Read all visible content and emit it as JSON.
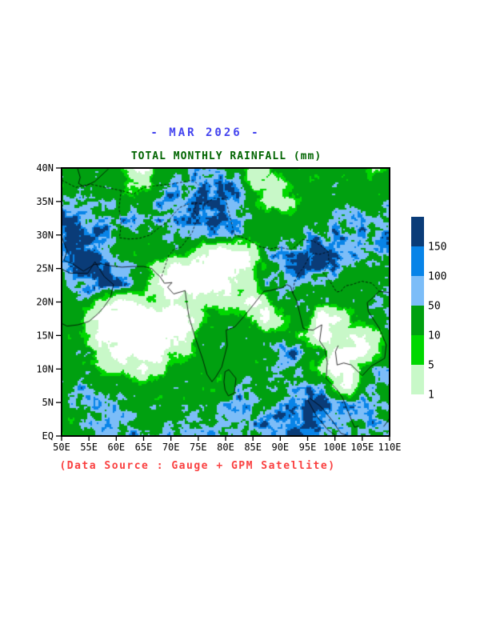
{
  "header": {
    "title": "- MAR 2026 -",
    "subtitle": "TOTAL MONTHLY RAINFALL (mm)"
  },
  "footer": {
    "source_note": "(Data Source : Gauge + GPM Satellite)"
  },
  "colors": {
    "title_text": "#4343ef",
    "subtitle_text": "#006400",
    "source_text": "#fa4040",
    "axis_text": "#000000",
    "frame": "#000000"
  },
  "chart_data": {
    "type": "heatmap",
    "title": "TOTAL MONTHLY RAINFALL (mm)",
    "period": "MAR 2026",
    "units": "mm",
    "x_ticks": [
      "50E",
      "55E",
      "60E",
      "65E",
      "70E",
      "75E",
      "80E",
      "85E",
      "90E",
      "95E",
      "100E",
      "105E",
      "110E"
    ],
    "y_ticks": [
      "EQ",
      "5N",
      "10N",
      "15N",
      "20N",
      "25N",
      "30N",
      "35N",
      "40N"
    ],
    "lon_range": [
      50,
      110
    ],
    "lat_range": [
      0,
      40
    ],
    "grid_on": false,
    "legend": {
      "position": "right",
      "labels": [
        "150",
        "100",
        "50",
        "10",
        "5",
        "1"
      ],
      "colors_top_to_bottom": [
        "#0a3c78",
        "#0884e8",
        "#7cbdf8",
        "#00a010",
        "#00d800",
        "#c8f8c8"
      ]
    },
    "level_thresholds_mm": [
      1,
      5,
      10,
      50,
      100,
      150
    ],
    "palette_low_to_high": [
      "#ffffff",
      "#c8f8c8",
      "#00d800",
      "#00a010",
      "#7cbdf8",
      "#0884e8",
      "#0a3c78"
    ],
    "grid": {
      "description": "Estimated rainfall category per 2.5-degree cell; rows top-to-bottom = 40N to EQ, cols left-to-right = 50E to 110E",
      "codes": {
        "0": "<1",
        "1": "1-5",
        "2": "5-10",
        "3": "10-50",
        "4": "50-100",
        "5": "100-150",
        "6": ">150"
      },
      "rows": [
        "3333310333443311333333323",
        "3333311344565411133333333",
        "4444333444565431113333334",
        "6544444444556443333344444",
        "6654333344454433334454446",
        "6664433333100014456654455",
        "5666543100000013466543333",
        "3456543100000114443333333",
        "3331001101111101333333344",
        "3310000000133310133001334",
        "3310000000333333331011013",
        "3331000011333333453300013",
        "3331110133333333443100344",
        "3443433333333433344410343",
        "3444433333334543456654443",
        "3344443334444544566544444",
        "3334444444444445565444444"
      ]
    },
    "basemap": {
      "coastlines": [
        [
          [
            50,
            29.8
          ],
          [
            51,
            27.6
          ],
          [
            50.4,
            26.2
          ],
          [
            52,
            25.7
          ],
          [
            54,
            24.6
          ],
          [
            56,
            25.6
          ],
          [
            57.2,
            25.7
          ],
          [
            59,
            25.4
          ],
          [
            61,
            25.2
          ],
          [
            63,
            25.3
          ],
          [
            65,
            25.3
          ],
          [
            66.5,
            25
          ],
          [
            67.3,
            24.3
          ],
          [
            68,
            23.8
          ],
          [
            68.8,
            22.8
          ],
          [
            70.2,
            22.9
          ],
          [
            69.4,
            22.2
          ],
          [
            70.5,
            21.2
          ],
          [
            72.6,
            21.7
          ],
          [
            72.8,
            20.4
          ],
          [
            73.3,
            17.8
          ],
          [
            74.4,
            14.8
          ],
          [
            75.8,
            11.5
          ],
          [
            76.6,
            9.2
          ],
          [
            77.5,
            8.1
          ],
          [
            78.2,
            8.8
          ],
          [
            79.3,
            10.3
          ],
          [
            80.3,
            13.5
          ],
          [
            80.1,
            15.8
          ],
          [
            81.7,
            16.3
          ],
          [
            83.3,
            17.8
          ],
          [
            85.1,
            19.6
          ],
          [
            87,
            21.6
          ],
          [
            88.1,
            21.7
          ],
          [
            89.1,
            21.9
          ],
          [
            90.3,
            22.1
          ],
          [
            91.2,
            22.6
          ],
          [
            91.9,
            22.3
          ],
          [
            92.3,
            21.3
          ],
          [
            93,
            20.2
          ],
          [
            94.2,
            16.1
          ],
          [
            94.8,
            15.9
          ],
          [
            96,
            15.8
          ],
          [
            97.6,
            16.6
          ],
          [
            97.2,
            14.2
          ],
          [
            98.2,
            13
          ],
          [
            98.6,
            11
          ],
          [
            98.4,
            8.6
          ],
          [
            100.3,
            7
          ],
          [
            101.4,
            5.7
          ],
          [
            103.1,
            2.2
          ],
          [
            103.6,
            1.3
          ],
          [
            104.3,
            1.5
          ]
        ],
        [
          [
            50,
            24.9
          ],
          [
            51.6,
            24.3
          ],
          [
            53.1,
            24.3
          ],
          [
            54.8,
            24.3
          ],
          [
            56.1,
            26
          ],
          [
            57.8,
            23.8
          ],
          [
            59.5,
            22.6
          ],
          [
            58.9,
            20.6
          ],
          [
            57.7,
            19.2
          ],
          [
            56.6,
            18.2
          ],
          [
            55,
            17.1
          ],
          [
            53,
            16.6
          ],
          [
            51,
            16.4
          ],
          [
            50,
            16.8
          ]
        ],
        [
          [
            100.6,
            13.5
          ],
          [
            100.1,
            12.6
          ],
          [
            100.4,
            10.6
          ],
          [
            101.6,
            10.9
          ],
          [
            103,
            10.6
          ],
          [
            105,
            9
          ],
          [
            106.6,
            10.4
          ],
          [
            109.1,
            11.6
          ],
          [
            109.4,
            13.6
          ],
          [
            108.1,
            16.1
          ],
          [
            106.1,
            18.6
          ],
          [
            105.9,
            19.9
          ],
          [
            106.9,
            20.6
          ],
          [
            108.1,
            21.6
          ],
          [
            110,
            21.4
          ]
        ],
        [
          [
            79.9,
            9.6
          ],
          [
            80.6,
            9.9
          ],
          [
            81.9,
            8.6
          ],
          [
            81.6,
            6.4
          ],
          [
            80.5,
            6
          ],
          [
            79.9,
            6.9
          ],
          [
            79.7,
            8.1
          ],
          [
            79.9,
            9.6
          ]
        ],
        [
          [
            95.3,
            5.7
          ],
          [
            97.4,
            4.4
          ],
          [
            99.4,
            2.4
          ],
          [
            101.1,
            0.4
          ],
          [
            102.5,
            0
          ]
        ],
        [
          [
            95,
            5.4
          ],
          [
            96.6,
            3
          ],
          [
            98.6,
            1
          ],
          [
            100.2,
            0
          ]
        ],
        [
          [
            52.9,
            40
          ],
          [
            53.4,
            38.6
          ],
          [
            53.1,
            37.7
          ],
          [
            54.1,
            37.2
          ],
          [
            56.1,
            38
          ],
          [
            58.6,
            39.9
          ]
        ],
        [
          [
            108.9,
            1.4
          ],
          [
            110,
            2.6
          ]
        ]
      ],
      "boundaries": [
        [
          [
            60.6,
            29.6
          ],
          [
            62.3,
            29.4
          ],
          [
            64.2,
            29.5
          ],
          [
            66.2,
            30
          ],
          [
            68,
            31.2
          ],
          [
            69.4,
            32
          ],
          [
            70.6,
            33.2
          ],
          [
            71.6,
            34.1
          ],
          [
            73.1,
            34.6
          ],
          [
            74.6,
            34.8
          ],
          [
            76.1,
            34.6
          ],
          [
            77.9,
            35.5
          ],
          [
            80,
            35.4
          ]
        ],
        [
          [
            80,
            35.4
          ],
          [
            81.6,
            30.1
          ],
          [
            84.1,
            29.3
          ],
          [
            86.1,
            28.3
          ],
          [
            88.1,
            27.9
          ],
          [
            89.6,
            28.2
          ],
          [
            92.1,
            27.8
          ],
          [
            94.1,
            29.3
          ],
          [
            96.1,
            29.1
          ],
          [
            97.6,
            28.3
          ],
          [
            98.8,
            27.5
          ],
          [
            98.9,
            25.8
          ],
          [
            97.9,
            24.3
          ],
          [
            99,
            23.2
          ],
          [
            100.3,
            21.5
          ],
          [
            101.1,
            21.6
          ],
          [
            101.9,
            22.4
          ],
          [
            103.1,
            22.6
          ],
          [
            104.9,
            23.1
          ],
          [
            106.8,
            22.8
          ],
          [
            108.1,
            21.6
          ]
        ],
        [
          [
            50,
            38.2
          ],
          [
            52.6,
            37.1
          ],
          [
            55.1,
            37.6
          ],
          [
            58.1,
            37.1
          ],
          [
            61.1,
            36.6
          ],
          [
            63.1,
            36.1
          ],
          [
            65.1,
            37.1
          ],
          [
            67.6,
            37.4
          ],
          [
            70.1,
            37.6
          ],
          [
            72.1,
            37.9
          ],
          [
            74.1,
            38.2
          ],
          [
            75.1,
            37.4
          ]
        ],
        [
          [
            60.9,
            36.7
          ],
          [
            60.5,
            34
          ],
          [
            60.9,
            31.6
          ],
          [
            60.6,
            29.6
          ]
        ],
        [
          [
            68.3,
            23.8
          ],
          [
            69.6,
            27
          ],
          [
            70.6,
            27.9
          ],
          [
            71.9,
            28.2
          ],
          [
            73.9,
            30.4
          ],
          [
            74.6,
            32
          ],
          [
            75.3,
            32.5
          ],
          [
            74.3,
            33.6
          ],
          [
            74.6,
            34.8
          ]
        ],
        [
          [
            92.3,
            21.3
          ],
          [
            92.6,
            23
          ],
          [
            93.2,
            24.1
          ],
          [
            94.2,
            25.1
          ],
          [
            95.2,
            26.6
          ],
          [
            96.1,
            27.3
          ],
          [
            97.1,
            27.1
          ],
          [
            98.8,
            27.5
          ]
        ]
      ]
    }
  }
}
